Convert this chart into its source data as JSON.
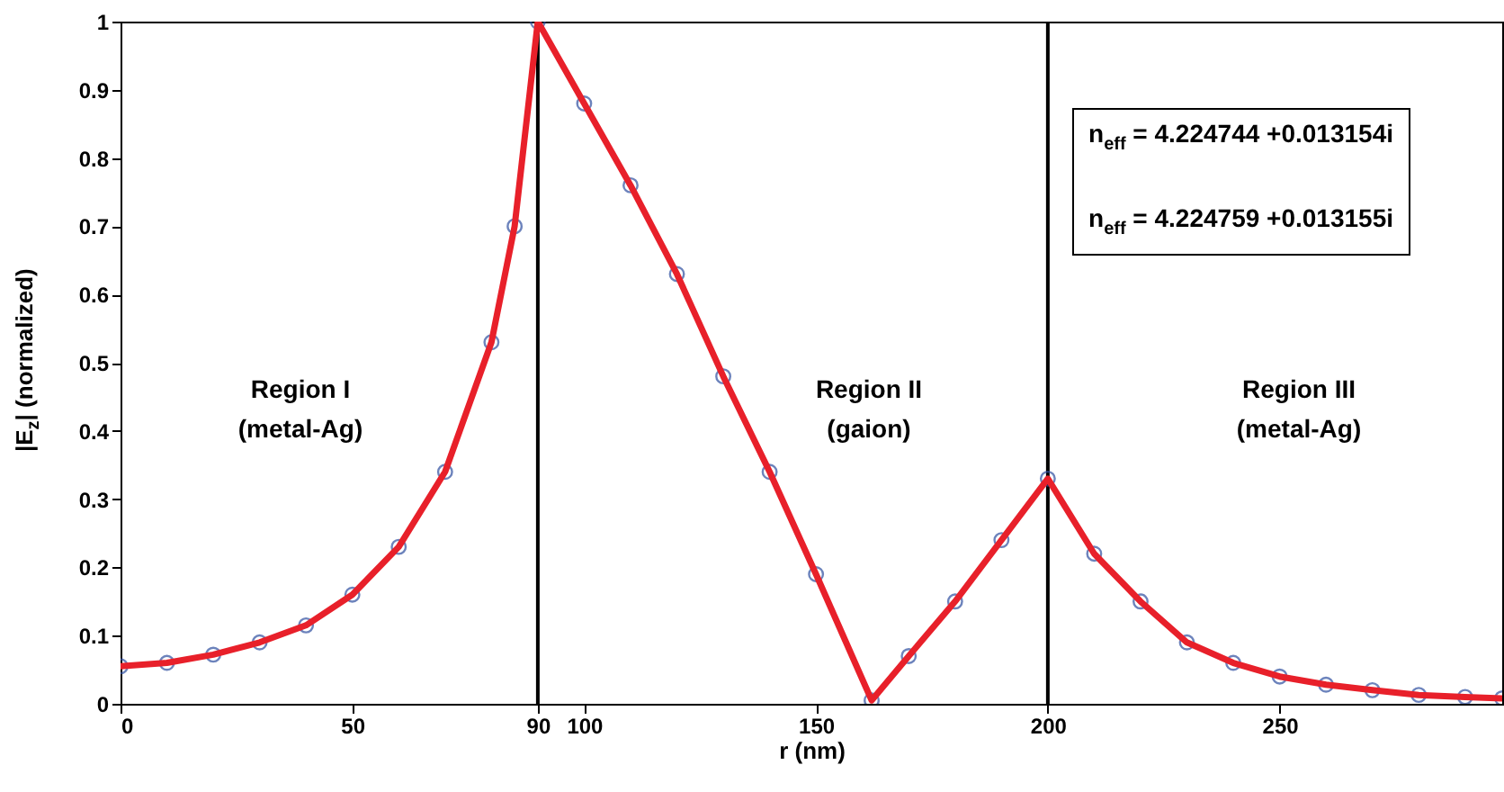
{
  "chart_data": {
    "type": "line",
    "xlabel": "r (nm)",
    "ylabel": "|E$_{z}$| (normalized)",
    "x": [
      0,
      10,
      20,
      30,
      40,
      50,
      60,
      70,
      80,
      85,
      90,
      100,
      110,
      120,
      130,
      140,
      150,
      162,
      170,
      180,
      190,
      200,
      210,
      220,
      230,
      240,
      250,
      260,
      270,
      280,
      290,
      298
    ],
    "series": [
      {
        "type": "scatter",
        "marker": "circle",
        "color": "#2f4fa0",
        "values": [
          0.055,
          0.06,
          0.072,
          0.09,
          0.115,
          0.16,
          0.23,
          0.34,
          0.53,
          0.7,
          1,
          0.88,
          0.76,
          0.63,
          0.48,
          0.34,
          0.19,
          0.005,
          0.07,
          0.15,
          0.24,
          0.33,
          0.22,
          0.15,
          0.09,
          0.06,
          0.04,
          0.028,
          0.02,
          0.013,
          0.01,
          0.008
        ]
      },
      {
        "color": "#e8202a",
        "values": [
          0.055,
          0.06,
          0.072,
          0.09,
          0.115,
          0.16,
          0.23,
          0.34,
          0.53,
          0.7,
          1,
          0.88,
          0.76,
          0.63,
          0.48,
          0.34,
          0.19,
          0.005,
          0.07,
          0.15,
          0.24,
          0.33,
          0.22,
          0.15,
          0.09,
          0.06,
          0.04,
          0.028,
          0.02,
          0.013,
          0.01,
          0.008
        ]
      }
    ],
    "xlim": [
      0,
      298
    ],
    "xticks": [
      0,
      50,
      90,
      100,
      150,
      200,
      250
    ],
    "ylim": [
      0,
      1
    ],
    "yticks": [
      0,
      0.1,
      0.2,
      0.3,
      0.4,
      0.5,
      0.6,
      0.7,
      0.8,
      0.9,
      1
    ],
    "ref_lines": [
      {
        "axis": "x",
        "value": 90,
        "color": "#000000"
      },
      {
        "axis": "x",
        "value": 200,
        "color": "#000000"
      }
    ],
    "annotations": [
      "Region I\n(metal-Ag)",
      "Region II\n(gaion)",
      "Region III\n(metal-Ag)",
      "n$_{eff}$ = 4.224744 +0.013154i",
      "n$_{eff}$ = 4.224759 +0.013155i"
    ]
  }
}
